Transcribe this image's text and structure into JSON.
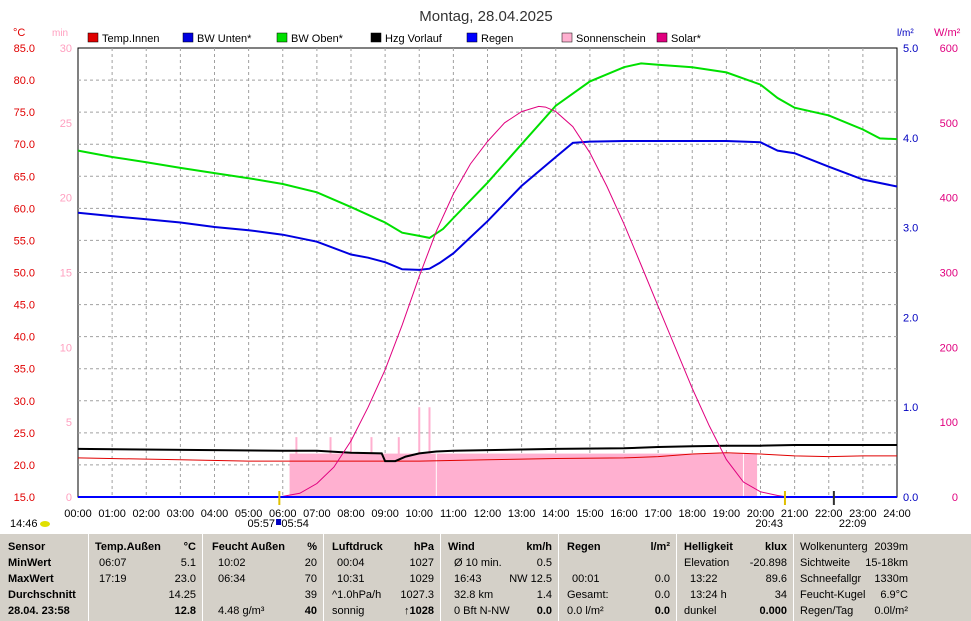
{
  "title": "Montag, 28.04.2025",
  "legend": [
    {
      "label": "Temp.Innen",
      "color": "#e00000"
    },
    {
      "label": "BW Unten*",
      "color": "#0000e0"
    },
    {
      "label": "BW Oben*",
      "color": "#00e000"
    },
    {
      "label": "Hzg Vorlauf",
      "color": "#000000"
    },
    {
      "label": "Regen",
      "color": "#0000ff"
    },
    {
      "label": "Sonnenschein",
      "color": "#ffb0d0"
    },
    {
      "label": "Solar*",
      "color": "#e0007f"
    }
  ],
  "axes": {
    "temp_unit": "°C",
    "min_unit": "min",
    "rain_unit": "l/m²",
    "solar_unit": "W/m²",
    "temp_ticks": [
      "85.0",
      "80.0",
      "75.0",
      "70.0",
      "65.0",
      "60.0",
      "55.0",
      "50.0",
      "45.0",
      "40.0",
      "35.0",
      "30.0",
      "25.0",
      "20.0",
      "15.0"
    ],
    "min_ticks": [
      "30",
      "25",
      "20",
      "15",
      "10",
      "5",
      "0"
    ],
    "rain_ticks": [
      "5.0",
      "4.0",
      "3.0",
      "2.0",
      "1.0",
      "0.0"
    ],
    "solar_ticks": [
      "600",
      "500",
      "400",
      "300",
      "200",
      "100",
      "0"
    ],
    "x_ticks": [
      "00:00",
      "01:00",
      "02:00",
      "03:00",
      "04:00",
      "05:00",
      "06:00",
      "07:00",
      "08:00",
      "09:00",
      "10:00",
      "11:00",
      "12:00",
      "13:00",
      "14:00",
      "15:00",
      "16:00",
      "17:00",
      "18:00",
      "19:00",
      "20:00",
      "21:00",
      "22:00",
      "23:00",
      "24:00"
    ]
  },
  "markers": {
    "moonrise": "05:57",
    "sunrise": "05:54",
    "sunset": "20:43",
    "moonset": "22:09",
    "left_time": "14:46"
  },
  "chart_data": {
    "type": "line",
    "title": "Montag, 28.04.2025",
    "x_unit": "hours",
    "xlim": [
      0,
      24
    ],
    "ylim_temp": [
      15,
      85
    ],
    "ylim_sun_min": [
      0,
      30
    ],
    "ylim_rain": [
      0,
      5
    ],
    "ylim_solar": [
      0,
      600
    ],
    "series": [
      {
        "name": "BW Oben*",
        "axis": "temp",
        "color": "#00e000",
        "x": [
          0,
          1,
          2,
          3,
          4,
          5,
          6,
          7,
          8,
          8.5,
          9,
          9.5,
          10,
          10.3,
          10.7,
          11,
          12,
          13,
          14,
          15,
          16,
          16.5,
          17,
          18,
          19,
          20,
          20.5,
          21,
          22,
          23,
          23.5,
          24
        ],
        "y": [
          69,
          68,
          67.2,
          66.3,
          65.5,
          64.7,
          63.8,
          62.5,
          60.2,
          59,
          57.8,
          56.2,
          55.7,
          55.4,
          56.8,
          58.5,
          64,
          70,
          76,
          79.8,
          82,
          82.6,
          82.4,
          82,
          81.2,
          79.3,
          77.2,
          75.7,
          74.5,
          72.3,
          70.9,
          70.8
        ]
      },
      {
        "name": "BW Unten*",
        "axis": "temp",
        "color": "#0000e0",
        "x": [
          0,
          1,
          2,
          3,
          4,
          5,
          6,
          7,
          8,
          8.5,
          9,
          9.5,
          10,
          10.3,
          10.6,
          11,
          12,
          13,
          14,
          14.5,
          15,
          16,
          17,
          18,
          19,
          20,
          20.5,
          21,
          22,
          23,
          24
        ],
        "y": [
          59.3,
          58.8,
          58.3,
          57.8,
          57.1,
          56.6,
          55.9,
          54.8,
          52.8,
          52.3,
          51.6,
          50.5,
          50.4,
          50.6,
          51.5,
          53,
          58,
          63.5,
          68,
          70.2,
          70.4,
          70.5,
          70.5,
          70.5,
          70.5,
          70.3,
          69,
          68.6,
          66.5,
          64.5,
          63.4
        ]
      },
      {
        "name": "Temp.Innen",
        "axis": "temp",
        "color": "#e00000",
        "x": [
          0,
          3,
          5,
          6,
          8,
          10,
          12,
          14,
          16,
          17,
          18,
          19,
          20,
          21,
          22,
          23,
          24
        ],
        "y": [
          21.1,
          20.8,
          20.6,
          20.6,
          20.6,
          20.6,
          20.8,
          21,
          21.1,
          21.3,
          21.7,
          21.9,
          21.7,
          21.4,
          21.3,
          21.4,
          21.4
        ]
      },
      {
        "name": "Hzg Vorlauf",
        "axis": "temp",
        "color": "#000000",
        "x": [
          0,
          6,
          7,
          8,
          8.9,
          9,
          9.3,
          9.6,
          10,
          10.5,
          11,
          14,
          16,
          17,
          18,
          19,
          20,
          21,
          22,
          23,
          24
        ],
        "y": [
          22.5,
          22.2,
          22.2,
          21.9,
          21.8,
          20.6,
          20.6,
          21.3,
          21.8,
          22.1,
          22.2,
          22.5,
          22.6,
          22.8,
          22.9,
          23,
          23,
          23.1,
          23.1,
          23.1,
          23.1
        ]
      },
      {
        "name": "Solar*",
        "axis": "solar",
        "color": "#e0007f",
        "x": [
          5.9,
          6.5,
          7,
          7.5,
          8,
          8.5,
          9,
          9.5,
          10,
          10.5,
          11,
          11.5,
          12,
          12.5,
          13,
          13.5,
          13.7,
          14,
          14.5,
          15,
          15.5,
          16,
          16.5,
          17,
          17.5,
          18,
          18.5,
          19,
          19.5,
          20,
          20.5,
          20.8
        ],
        "y": [
          0,
          5,
          18,
          40,
          75,
          120,
          170,
          230,
          295,
          355,
          405,
          445,
          475,
          500,
          515,
          522,
          521,
          515,
          495,
          460,
          415,
          365,
          310,
          255,
          200,
          145,
          95,
          50,
          20,
          7,
          2,
          0
        ]
      },
      {
        "name": "Sonnenschein",
        "axis": "sun_min",
        "color": "#ffb0d0",
        "x": [
          6.2,
          19.9
        ],
        "y": [
          2.9,
          2.9
        ],
        "spikes_x": [
          6.4,
          7.4,
          8.0,
          8.6,
          9.4,
          10.0,
          10.3
        ],
        "spikes_y": [
          4,
          4,
          4,
          4,
          4,
          6,
          6
        ]
      },
      {
        "name": "Regen",
        "axis": "rain",
        "color": "#0000ff",
        "x": [
          0,
          24
        ],
        "y": [
          0,
          0
        ]
      }
    ]
  },
  "stats": {
    "sensor": {
      "header": "Sensor",
      "rows": [
        "MinWert",
        "MaxWert",
        "Durchschnitt",
        "28.04. 23:58"
      ]
    },
    "temp": {
      "header": "Temp.Außen",
      "unit": "°C",
      "rows": [
        [
          "06:07",
          "5.1"
        ],
        [
          "17:19",
          "23.0"
        ],
        [
          "",
          "14.25"
        ],
        [
          "",
          "12.8"
        ]
      ]
    },
    "humid": {
      "header": "Feucht Außen",
      "unit": "%",
      "rows": [
        [
          "10:02",
          "20"
        ],
        [
          "06:34",
          "70"
        ],
        [
          "",
          "39"
        ],
        [
          "4.48 g/m³",
          "40"
        ]
      ]
    },
    "press": {
      "header": "Luftdruck",
      "unit": "hPa",
      "rows": [
        [
          "00:04",
          "1027"
        ],
        [
          "10:31",
          "1029"
        ],
        [
          "^1.0hPa/h",
          "1027.3"
        ],
        [
          "sonnig",
          "↑1028"
        ]
      ]
    },
    "wind": {
      "header": "Wind",
      "unit": "km/h",
      "rows": [
        [
          "Ø 10 min.",
          "0.5"
        ],
        [
          "16:43",
          "NW 12.5"
        ],
        [
          "32.8 km",
          "1.4"
        ],
        [
          "0 Bft N-NW",
          "0.0"
        ]
      ]
    },
    "rain": {
      "header": "Regen",
      "unit": "l/m²",
      "rows": [
        [
          "",
          ""
        ],
        [
          "00:01",
          "0.0"
        ],
        [
          "Gesamt:",
          "0.0"
        ],
        [
          "0.0 l/m²",
          "0.0"
        ]
      ]
    },
    "light": {
      "header": "Helligkeit",
      "unit": "klux",
      "rows": [
        [
          "Elevation",
          "-20.898"
        ],
        [
          "13:22",
          "89.6"
        ],
        [
          "13:24 h",
          "34"
        ],
        [
          "dunkel",
          "0.000"
        ]
      ]
    },
    "misc": {
      "rows": [
        [
          "Wolkenunterg",
          "2039m"
        ],
        [
          "Sichtweite",
          "15-18km"
        ],
        [
          "Schneefallgr",
          "1330m"
        ],
        [
          "Feucht-Kugel",
          "6.9°C"
        ],
        [
          "Regen/Tag",
          "0.0l/m²"
        ]
      ]
    }
  }
}
